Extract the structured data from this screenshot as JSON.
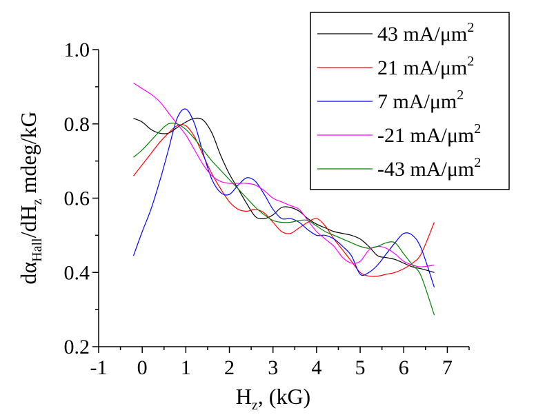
{
  "chart_data": {
    "type": "line",
    "xlabel": {
      "main": "H",
      "sub": "z",
      "rest": ", (kG)"
    },
    "ylabel": {
      "p1": "dα",
      "sub1": "Hall",
      "p2": "/dH",
      "sub2": "z",
      "p3": " mdeg/kG"
    },
    "xlim": [
      -1,
      7.5
    ],
    "ylim": [
      0.2,
      1.0
    ],
    "xticks": [
      -1,
      0,
      1,
      2,
      3,
      4,
      5,
      6,
      7
    ],
    "xtick_labels": [
      "-1",
      "0",
      "1",
      "2",
      "3",
      "4",
      "5",
      "6",
      "7"
    ],
    "yticks": [
      0.2,
      0.4,
      0.6,
      0.8,
      1.0
    ],
    "ytick_labels": [
      "0.2",
      "0.4",
      "0.6",
      "0.8",
      "1.0"
    ],
    "grid": false,
    "legend_position": "top-right",
    "series": [
      {
        "name": "43 mA/μm",
        "sup": "2",
        "color": "#000000",
        "x": [
          -0.2,
          0.0,
          0.2,
          0.4,
          0.6,
          0.8,
          1.0,
          1.2,
          1.4,
          1.6,
          1.8,
          2.0,
          2.2,
          2.4,
          2.6,
          2.8,
          3.0,
          3.2,
          3.4,
          3.6,
          3.8,
          4.0,
          4.2,
          4.4,
          4.6,
          4.8,
          5.0,
          5.2,
          5.4,
          5.6,
          5.8,
          6.0,
          6.2,
          6.4,
          6.7
        ],
        "y": [
          0.815,
          0.805,
          0.785,
          0.775,
          0.775,
          0.79,
          0.805,
          0.815,
          0.81,
          0.775,
          0.715,
          0.665,
          0.625,
          0.585,
          0.55,
          0.545,
          0.555,
          0.575,
          0.575,
          0.565,
          0.545,
          0.53,
          0.52,
          0.51,
          0.505,
          0.5,
          0.49,
          0.47,
          0.445,
          0.44,
          0.435,
          0.425,
          0.415,
          0.41,
          0.4
        ]
      },
      {
        "name": "21 mA/μm",
        "sup": "2",
        "color": "#ff0000",
        "x": [
          -0.2,
          0.0,
          0.2,
          0.4,
          0.6,
          0.8,
          1.0,
          1.2,
          1.4,
          1.6,
          1.8,
          2.0,
          2.2,
          2.4,
          2.6,
          2.8,
          3.0,
          3.2,
          3.4,
          3.6,
          3.8,
          4.0,
          4.2,
          4.4,
          4.6,
          4.8,
          5.0,
          5.2,
          5.4,
          5.6,
          5.8,
          6.0,
          6.2,
          6.4,
          6.7
        ],
        "y": [
          0.66,
          0.69,
          0.72,
          0.75,
          0.775,
          0.795,
          0.795,
          0.765,
          0.715,
          0.665,
          0.625,
          0.59,
          0.57,
          0.565,
          0.57,
          0.56,
          0.535,
          0.51,
          0.505,
          0.52,
          0.535,
          0.545,
          0.525,
          0.49,
          0.46,
          0.43,
          0.4,
          0.39,
          0.39,
          0.395,
          0.4,
          0.41,
          0.425,
          0.45,
          0.535
        ]
      },
      {
        "name": "7 mA/μm",
        "sup": "2",
        "color": "#0000ff",
        "x": [
          -0.2,
          0.0,
          0.2,
          0.4,
          0.6,
          0.8,
          1.0,
          1.2,
          1.4,
          1.6,
          1.8,
          2.0,
          2.2,
          2.4,
          2.6,
          2.8,
          3.0,
          3.2,
          3.4,
          3.6,
          3.8,
          4.0,
          4.2,
          4.4,
          4.6,
          4.8,
          5.0,
          5.2,
          5.4,
          5.6,
          5.8,
          6.0,
          6.2,
          6.4,
          6.7
        ],
        "y": [
          0.445,
          0.51,
          0.57,
          0.645,
          0.73,
          0.815,
          0.84,
          0.8,
          0.72,
          0.65,
          0.615,
          0.61,
          0.635,
          0.655,
          0.645,
          0.61,
          0.57,
          0.545,
          0.545,
          0.535,
          0.515,
          0.5,
          0.5,
          0.49,
          0.47,
          0.445,
          0.395,
          0.4,
          0.42,
          0.45,
          0.48,
          0.505,
          0.5,
          0.465,
          0.36
        ]
      },
      {
        "name": "-21 mA/μm",
        "sup": "2",
        "color": "#ff00ff",
        "x": [
          -0.2,
          0.0,
          0.2,
          0.4,
          0.6,
          0.8,
          1.0,
          1.2,
          1.4,
          1.6,
          1.8,
          2.0,
          2.2,
          2.4,
          2.6,
          2.8,
          3.0,
          3.2,
          3.4,
          3.6,
          3.8,
          4.0,
          4.2,
          4.4,
          4.6,
          4.8,
          5.0,
          5.2,
          5.4,
          5.6,
          5.8,
          6.0,
          6.2,
          6.4,
          6.7
        ],
        "y": [
          0.91,
          0.895,
          0.88,
          0.86,
          0.83,
          0.8,
          0.77,
          0.73,
          0.69,
          0.66,
          0.645,
          0.64,
          0.64,
          0.64,
          0.635,
          0.62,
          0.6,
          0.59,
          0.58,
          0.57,
          0.54,
          0.51,
          0.49,
          0.47,
          0.44,
          0.425,
          0.43,
          0.46,
          0.47,
          0.465,
          0.45,
          0.43,
          0.42,
          0.415,
          0.42
        ]
      },
      {
        "name": "-43 mA/μm",
        "sup": "2",
        "color": "#008000",
        "x": [
          -0.2,
          0.0,
          0.2,
          0.4,
          0.6,
          0.8,
          1.0,
          1.2,
          1.4,
          1.6,
          1.8,
          2.0,
          2.2,
          2.4,
          2.6,
          2.8,
          3.0,
          3.2,
          3.4,
          3.6,
          3.8,
          4.0,
          4.2,
          4.4,
          4.6,
          4.8,
          5.0,
          5.2,
          5.4,
          5.6,
          5.8,
          6.0,
          6.2,
          6.4,
          6.7
        ],
        "y": [
          0.71,
          0.73,
          0.755,
          0.78,
          0.8,
          0.8,
          0.785,
          0.76,
          0.73,
          0.7,
          0.675,
          0.65,
          0.625,
          0.6,
          0.575,
          0.555,
          0.54,
          0.535,
          0.535,
          0.54,
          0.54,
          0.525,
          0.51,
          0.5,
          0.49,
          0.48,
          0.47,
          0.465,
          0.47,
          0.48,
          0.48,
          0.45,
          0.42,
          0.39,
          0.285
        ]
      }
    ]
  }
}
